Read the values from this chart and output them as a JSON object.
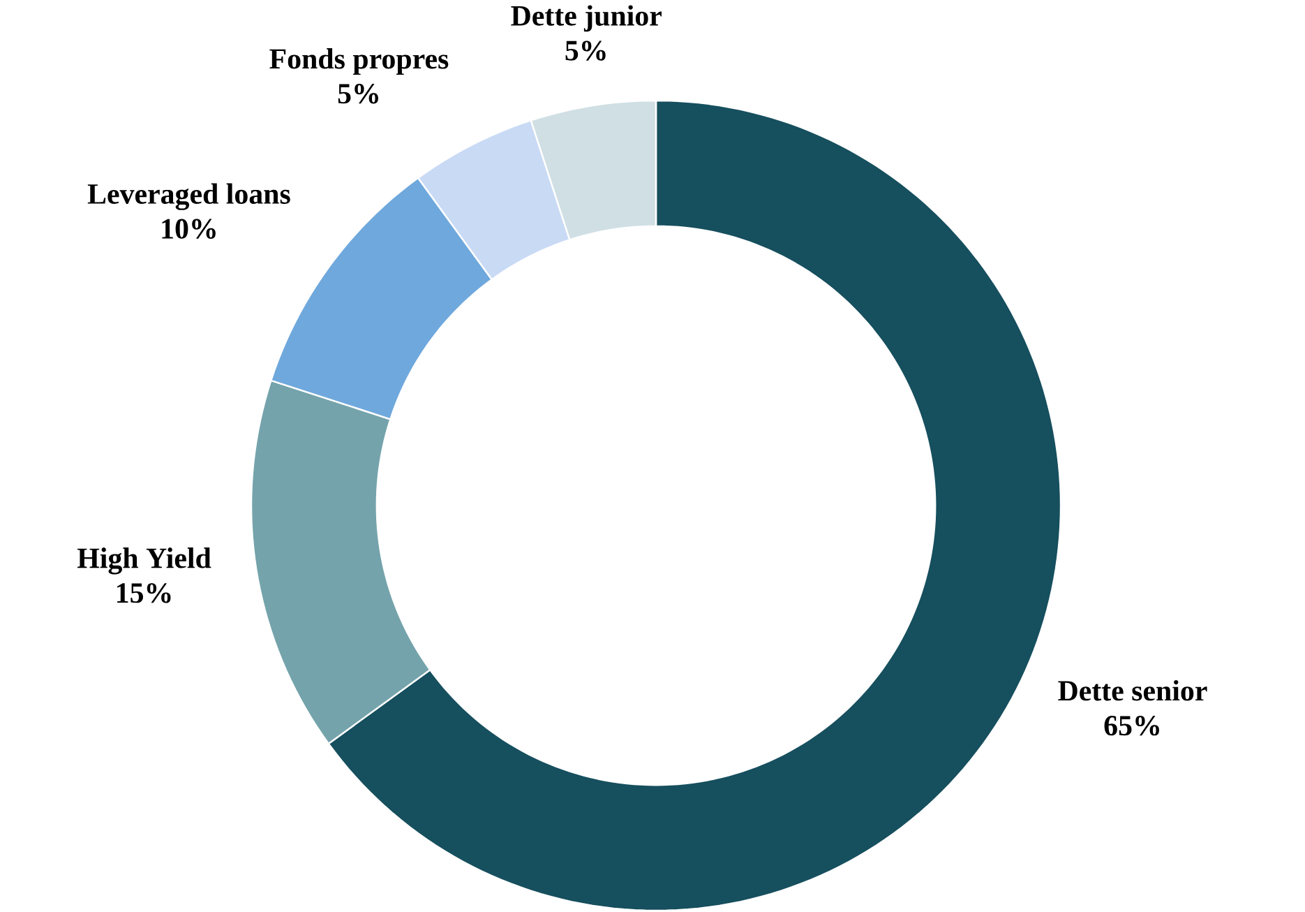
{
  "chart_data": {
    "type": "donut",
    "categories": [
      "Dette senior",
      "High Yield",
      "Leveraged loans",
      "Fonds propres",
      "Dette junior"
    ],
    "values": [
      65,
      15,
      10,
      5,
      5
    ],
    "value_labels": [
      "65%",
      "15%",
      "10%",
      "5%",
      "5%"
    ],
    "colors": [
      "#164f5e",
      "#74a3ab",
      "#6fa8dc",
      "#c9daf5",
      "#d0dfe3"
    ]
  }
}
